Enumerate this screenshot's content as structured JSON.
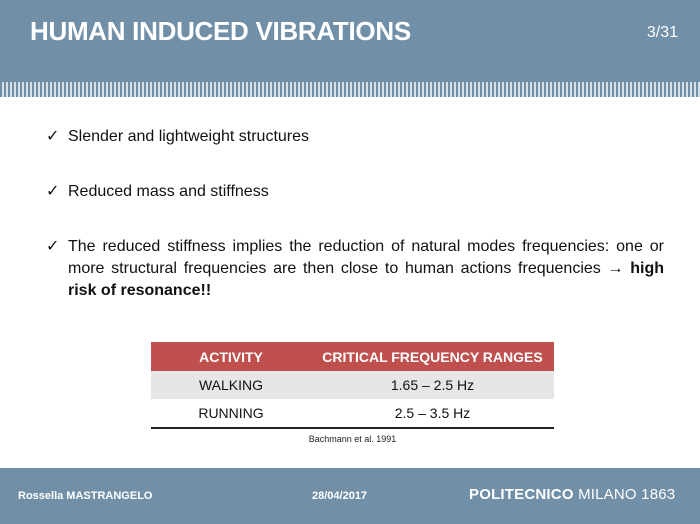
{
  "header": {
    "title": "HUMAN INDUCED VIBRATIONS",
    "page": "3/31"
  },
  "bullets": [
    {
      "text": "Slender and lightweight structures"
    },
    {
      "text": "Reduced mass and stiffness"
    },
    {
      "text": "The reduced stiffness implies the reduction of natural modes frequencies: one or more structural frequencies are then close to human actions frequencies",
      "arrow": "→",
      "emphasis": "high risk of resonance!!"
    }
  ],
  "bullet_icon": "checkmark-icon",
  "bullet_glyph": "✓",
  "table": {
    "headers": [
      "ACTIVITY",
      "CRITICAL FREQUENCY RANGES"
    ],
    "rows": [
      [
        "WALKING",
        "1.65 – 2.5 Hz"
      ],
      [
        "RUNNING",
        "2.5 – 3.5 Hz"
      ]
    ],
    "header_color": "#c0504d",
    "source": "Bachmann et al. 1991"
  },
  "footer": {
    "author": "Rossella MASTRANGELO",
    "date": "28/04/2017",
    "logo_bold": "POLITECNICO",
    "logo_rest": "MILANO 1863"
  },
  "colors": {
    "band": "#7190a8"
  }
}
